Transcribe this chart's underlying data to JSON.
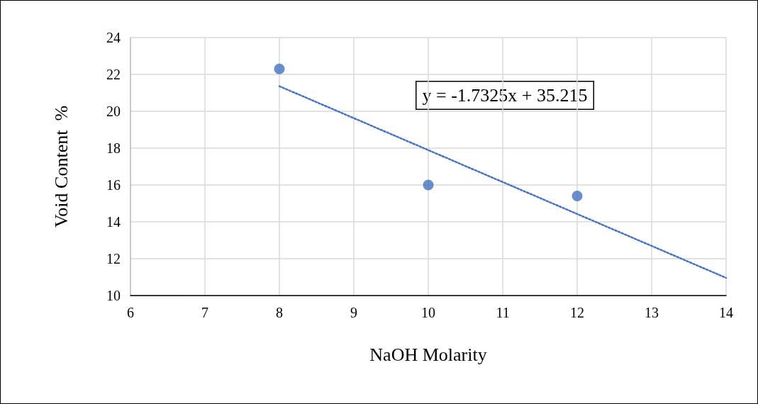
{
  "chart_data": {
    "type": "scatter",
    "xlabel": "NaOH Molarity",
    "ylabel": "Void Content  %",
    "xlim": [
      6,
      14
    ],
    "xticks": [
      6,
      7,
      8,
      9,
      10,
      11,
      12,
      13,
      14
    ],
    "ylim": [
      10,
      24
    ],
    "yticks": [
      10,
      12,
      14,
      16,
      18,
      20,
      22,
      24
    ],
    "grid": true,
    "series": [
      {
        "color": "#4472c4",
        "marker": "circle",
        "x": [
          8,
          10,
          12
        ],
        "values": [
          22.3,
          16.0,
          15.4
        ]
      },
      {
        "type": "line",
        "color": "#4472c4",
        "marker": "none",
        "line_style": "dotted",
        "x": [
          8,
          14
        ],
        "values": [
          21.36,
          10.96
        ]
      }
    ],
    "annotations": [
      "y = -1.7325x + 35.215"
    ]
  }
}
